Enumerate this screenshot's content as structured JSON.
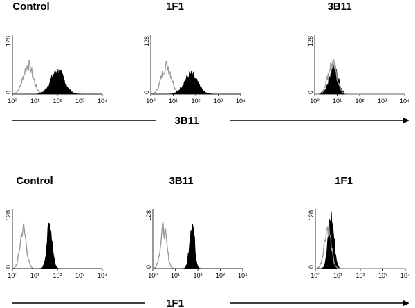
{
  "arrows": [
    {
      "label": "3B11"
    },
    {
      "label": "1F1"
    }
  ],
  "chart_data": [
    {
      "type": "area",
      "title": "Control",
      "log_x": true,
      "xlim": [
        1,
        10000
      ],
      "ylim": [
        0,
        128
      ],
      "x_ticks": [
        "10⁰",
        "10¹",
        "10²",
        "10³",
        "10⁴"
      ],
      "y_ticks": [
        "0",
        "128"
      ],
      "series": [
        {
          "color": "#999999",
          "style": "outline",
          "peak_x": 5,
          "peak_y": 62,
          "width_decades": 0.22
        },
        {
          "color": "#000000",
          "style": "filled",
          "peak_x": 100,
          "peak_y": 50,
          "width_decades": 0.3
        }
      ]
    },
    {
      "type": "area",
      "title": "1F1",
      "log_x": true,
      "xlim": [
        1,
        10000
      ],
      "ylim": [
        0,
        128
      ],
      "x_ticks": [
        "10⁰",
        "10¹",
        "10²",
        "10³",
        "10⁴"
      ],
      "y_ticks": [
        "0",
        "128"
      ],
      "series": [
        {
          "color": "#999999",
          "style": "outline",
          "peak_x": 5,
          "peak_y": 62,
          "width_decades": 0.22
        },
        {
          "color": "#000000",
          "style": "filled",
          "peak_x": 60,
          "peak_y": 42,
          "width_decades": 0.3
        }
      ]
    },
    {
      "type": "area",
      "title": "3B11",
      "log_x": true,
      "xlim": [
        1,
        10000
      ],
      "ylim": [
        0,
        128
      ],
      "x_ticks": [
        "10⁰",
        "10¹",
        "10²",
        "10³",
        "10⁴"
      ],
      "y_ticks": [
        "0",
        "128"
      ],
      "series": [
        {
          "color": "#000000",
          "style": "filled",
          "peak_x": 7,
          "peak_y": 58,
          "width_decades": 0.2
        },
        {
          "color": "#999999",
          "style": "outline",
          "peak_x": 6,
          "peak_y": 66,
          "width_decades": 0.2
        }
      ]
    },
    {
      "type": "area",
      "title": "Control",
      "log_x": true,
      "xlim": [
        1,
        10000
      ],
      "ylim": [
        0,
        128
      ],
      "x_ticks": [
        "10⁰",
        "10¹",
        "10²",
        "10³",
        "10⁴"
      ],
      "y_ticks": [
        "0",
        "128"
      ],
      "series": [
        {
          "color": "#999999",
          "style": "outline",
          "peak_x": 3,
          "peak_y": 85,
          "width_decades": 0.14
        },
        {
          "color": "#000000",
          "style": "filled",
          "peak_x": 45,
          "peak_y": 95,
          "width_decades": 0.12
        }
      ]
    },
    {
      "type": "area",
      "title": "3B11",
      "log_x": true,
      "xlim": [
        1,
        10000
      ],
      "ylim": [
        0,
        128
      ],
      "x_ticks": [
        "10⁰",
        "10¹",
        "10²",
        "10³",
        "10⁴"
      ],
      "y_ticks": [
        "0",
        "128"
      ],
      "series": [
        {
          "color": "#999999",
          "style": "outline",
          "peak_x": 3,
          "peak_y": 85,
          "width_decades": 0.14
        },
        {
          "color": "#000000",
          "style": "filled",
          "peak_x": 55,
          "peak_y": 100,
          "width_decades": 0.11
        }
      ]
    },
    {
      "type": "area",
      "title": "1F1",
      "log_x": true,
      "xlim": [
        1,
        10000
      ],
      "ylim": [
        0,
        128
      ],
      "x_ticks": [
        "10⁰",
        "10¹",
        "10²",
        "10³",
        "10⁴"
      ],
      "y_ticks": [
        "0",
        "128"
      ],
      "series": [
        {
          "color": "#000000",
          "style": "filled",
          "peak_x": 5,
          "peak_y": 110,
          "width_decades": 0.13
        },
        {
          "color": "#999999",
          "style": "outline",
          "peak_x": 3.5,
          "peak_y": 88,
          "width_decades": 0.15
        }
      ]
    }
  ]
}
